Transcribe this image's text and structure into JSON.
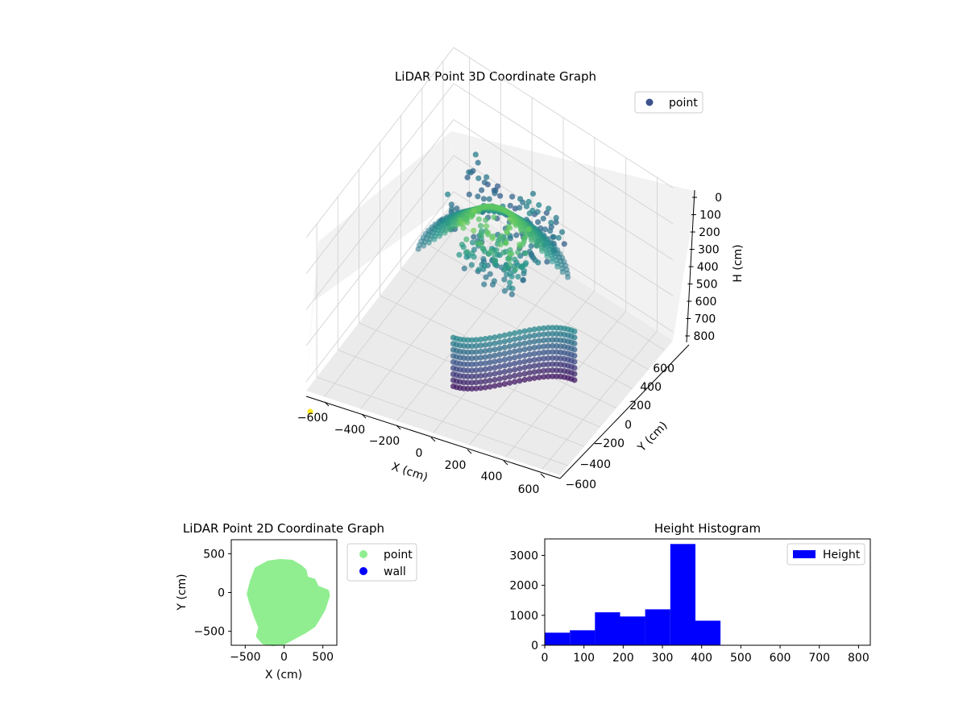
{
  "colors": {
    "background": "#ffffff",
    "pane_light": "#f2f2f2",
    "pane_mid": "#ebebeb",
    "grid": "#cfcfcf",
    "axis": "#000000",
    "viridis_dark": "#440154",
    "viridis_blue": "#3b528b",
    "viridis_teal": "#21918c",
    "viridis_green": "#5ec962",
    "viridis_yellow": "#fde725",
    "scatter2d_point": "#90ee90",
    "scatter2d_wall": "#0000ff",
    "histogram_bar": "#0000ff",
    "legend_border": "#cccccc"
  },
  "chart_data": [
    {
      "type": "scatter3d",
      "title": "LiDAR Point 3D Coordinate Graph",
      "xlabel": "X (cm)",
      "ylabel": "Y (cm)",
      "zlabel": "H (cm)",
      "xlim": [
        -700,
        700
      ],
      "ylim": [
        -700,
        700
      ],
      "zlim": [
        0,
        850
      ],
      "z_inverted": true,
      "x_ticks": [
        "−600",
        "−400",
        "−200",
        "0",
        "200",
        "400",
        "600"
      ],
      "y_ticks": [
        "−600",
        "−400",
        "−200",
        "0",
        "200",
        "400",
        "600"
      ],
      "z_ticks": [
        "0",
        "100",
        "200",
        "300",
        "400",
        "500",
        "600",
        "700",
        "800"
      ],
      "legend": {
        "entries": [
          "point"
        ],
        "placement": "upper-right"
      },
      "colormap": "viridis",
      "grid": true,
      "series": [
        {
          "name": "point",
          "regions": [
            {
              "shape": "dome",
              "x_range": [
                -350,
                250
              ],
              "y_range": [
                -300,
                380
              ],
              "h_range": [
                180,
                420
              ]
            },
            {
              "shape": "curved-wall",
              "x_range": [
                50,
                550
              ],
              "y_range": [
                -580,
                -200
              ],
              "h_range": [
                380,
                650
              ]
            },
            {
              "shape": "vertical-band",
              "x_range": [
                -200,
                150
              ],
              "y_range": [
                -100,
                100
              ],
              "h_range": [
                150,
                450
              ]
            },
            {
              "shape": "scattered-cluster",
              "x_range": [
                -500,
                150
              ],
              "y_range": [
                150,
                600
              ],
              "h_range": [
                380,
                500
              ]
            },
            {
              "shape": "single-point",
              "x": -650,
              "y": 650,
              "h": 0
            }
          ]
        }
      ]
    },
    {
      "type": "scatter",
      "title": "LiDAR Point 2D Coordinate Graph",
      "xlabel": "X (cm)",
      "ylabel": "Y (cm)",
      "xlim": [
        -680,
        680
      ],
      "ylim": [
        -680,
        680
      ],
      "x_ticks": [
        "−500",
        "0",
        "500"
      ],
      "y_ticks": [
        "−500",
        "0",
        "500"
      ],
      "legend": {
        "entries": [
          "point",
          "wall"
        ],
        "placement": "outside-right"
      },
      "series": [
        {
          "name": "point",
          "shape": "filled-region",
          "outline": [
            [
              -350,
              300
            ],
            [
              -200,
              380
            ],
            [
              -50,
              400
            ],
            [
              100,
              390
            ],
            [
              200,
              330
            ],
            [
              260,
              280
            ],
            [
              280,
              180
            ],
            [
              380,
              150
            ],
            [
              420,
              60
            ],
            [
              550,
              10
            ],
            [
              560,
              -40
            ],
            [
              500,
              -220
            ],
            [
              380,
              -420
            ],
            [
              260,
              -500
            ],
            [
              150,
              -560
            ],
            [
              0,
              -640
            ],
            [
              -150,
              -660
            ],
            [
              -260,
              -640
            ],
            [
              -330,
              -560
            ],
            [
              -300,
              -450
            ],
            [
              -360,
              -300
            ],
            [
              -420,
              -120
            ],
            [
              -450,
              -20
            ],
            [
              -410,
              140
            ]
          ]
        },
        {
          "name": "wall",
          "points": []
        }
      ]
    },
    {
      "type": "histogram",
      "title": "Height Histogram",
      "xlim": [
        0,
        830
      ],
      "ylim": [
        0,
        3550
      ],
      "x_ticks": [
        "0",
        "100",
        "200",
        "300",
        "400",
        "500",
        "600",
        "700",
        "800"
      ],
      "y_ticks": [
        "0",
        "1000",
        "2000",
        "3000"
      ],
      "legend": {
        "entries": [
          "Height"
        ],
        "placement": "upper-right"
      },
      "series": [
        {
          "name": "Height",
          "bin_edges": [
            0,
            64,
            128,
            192,
            256,
            320,
            384,
            448,
            512,
            576,
            640,
            704,
            768,
            832
          ],
          "counts": [
            420,
            500,
            1100,
            960,
            1200,
            3380,
            820,
            0,
            0,
            0,
            0,
            0,
            0
          ]
        }
      ]
    }
  ]
}
